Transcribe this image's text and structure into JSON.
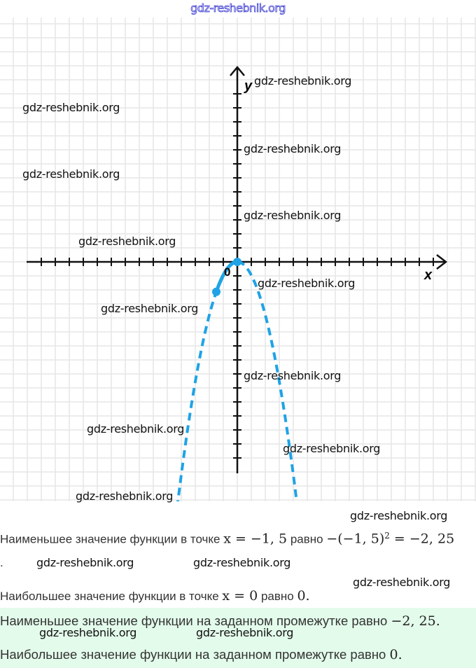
{
  "site": "gdz-reshebnik.org",
  "graph": {
    "x_label": "x",
    "y_label": "y",
    "origin_label": "0",
    "function": "y = -x^2",
    "highlighted_segment": [
      -1.5,
      0
    ],
    "marked_point": [
      -1.5,
      -2.25
    ],
    "curve_color": "#1fa3e6"
  },
  "watermarks": [
    "gdz-reshebnik.org",
    "gdz-reshebnik.org",
    "gdz-reshebnik.org",
    "gdz-reshebnik.org",
    "gdz-reshebnik.org",
    "gdz-reshebnik.org",
    "gdz-reshebnik.org",
    "gdz-reshebnik.org",
    "gdz-reshebnik.org",
    "gdz-reshebnik.org",
    "gdz-reshebnik.org",
    "gdz-reshebnik.org",
    "gdz-reshebnik.org",
    "gdz-reshebnik.org",
    "gdz-reshebnik.org",
    "gdz-reshebnik.org",
    "gdz-reshebnik.org"
  ],
  "text": {
    "line1_a": "Наименьшее значение функции в точке ",
    "line1_m1": "x = −1, 5",
    "line1_b": " равно ",
    "line1_m2": "−(−1, 5)",
    "line1_sup": "2",
    "line1_m3": " = −2, 25",
    "line1_dot": ".",
    "line2_a": "Наибольшее значение функции в точке ",
    "line2_m1": "x = 0",
    "line2_b": " равно ",
    "line2_m2": "0.",
    "answer1_a": "Наименьшее значение функции на заданном промежутке равно ",
    "answer1_m": "−2, 25.",
    "answer2_a": "Наибольшее значение функции на заданном промежутке равно ",
    "answer2_m": "0."
  }
}
